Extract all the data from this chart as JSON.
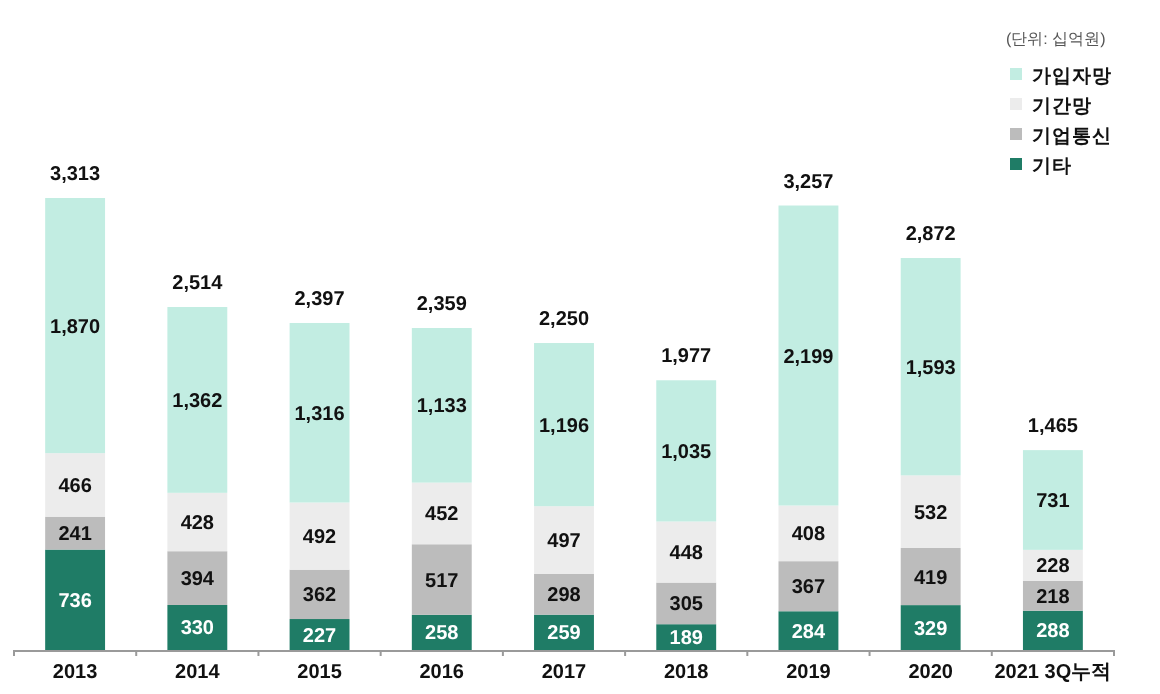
{
  "chart_data": {
    "type": "bar",
    "stacked": true,
    "categories": [
      "2013",
      "2014",
      "2015",
      "2016",
      "2017",
      "2018",
      "2019",
      "2020",
      "2021 3Q누적"
    ],
    "series": [
      {
        "name": "기타",
        "color": "#1f7c66",
        "values": [
          736,
          330,
          227,
          258,
          259,
          189,
          284,
          329,
          288
        ],
        "value_labels": [
          "736",
          "330",
          "227",
          "258",
          "259",
          "189",
          "284",
          "329",
          "288"
        ]
      },
      {
        "name": "기업통신",
        "color": "#bcbcbc",
        "values": [
          241,
          394,
          362,
          517,
          298,
          305,
          367,
          419,
          218
        ],
        "value_labels": [
          "241",
          "394",
          "362",
          "517",
          "298",
          "305",
          "367",
          "419",
          "218"
        ]
      },
      {
        "name": "기간망",
        "color": "#ececec",
        "values": [
          466,
          428,
          492,
          452,
          497,
          448,
          408,
          532,
          228
        ],
        "value_labels": [
          "466",
          "428",
          "492",
          "452",
          "497",
          "448",
          "408",
          "532",
          "228"
        ]
      },
      {
        "name": "가입자망",
        "color": "#c2ede2",
        "values": [
          1870,
          1362,
          1316,
          1133,
          1196,
          1035,
          2199,
          1593,
          731
        ],
        "value_labels": [
          "1,870",
          "1,362",
          "1,316",
          "1,133",
          "1,196",
          "1,035",
          "2,199",
          "1,593",
          "731"
        ]
      }
    ],
    "totals": [
      "3,313",
      "2,514",
      "2,397",
      "2,359",
      "2,250",
      "1,977",
      "3,257",
      "2,872",
      "1,465"
    ],
    "legend": "top right",
    "annotations": [
      "(단위: 십억원)"
    ]
  }
}
